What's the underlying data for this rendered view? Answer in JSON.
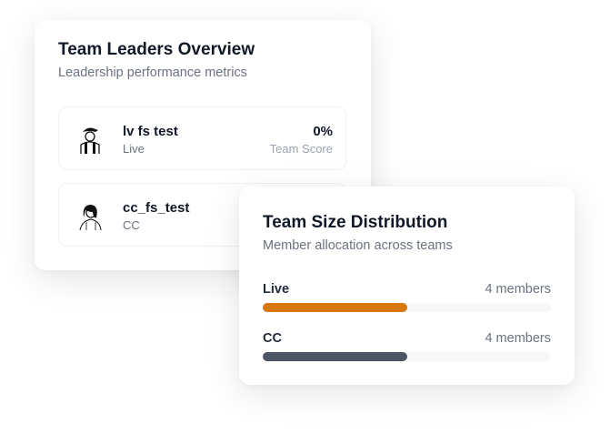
{
  "leaders": {
    "title": "Team Leaders Overview",
    "subtitle": "Leadership performance metrics",
    "items": [
      {
        "name": "lv fs test",
        "team": "Live",
        "score": "0%",
        "score_label": "Team Score",
        "avatar": "man-cap-avatar-icon"
      },
      {
        "name": "cc_fs_test",
        "team": "CC",
        "score": "",
        "score_label": "",
        "avatar": "woman-avatar-icon"
      }
    ]
  },
  "distribution": {
    "title": "Team Size Distribution",
    "subtitle": "Member allocation across teams",
    "items": [
      {
        "label": "Live",
        "count": "4 members",
        "fraction": 0.5,
        "color": "#d9770f"
      },
      {
        "label": "CC",
        "count": "4 members",
        "fraction": 0.5,
        "color": "#4b5563"
      }
    ]
  }
}
